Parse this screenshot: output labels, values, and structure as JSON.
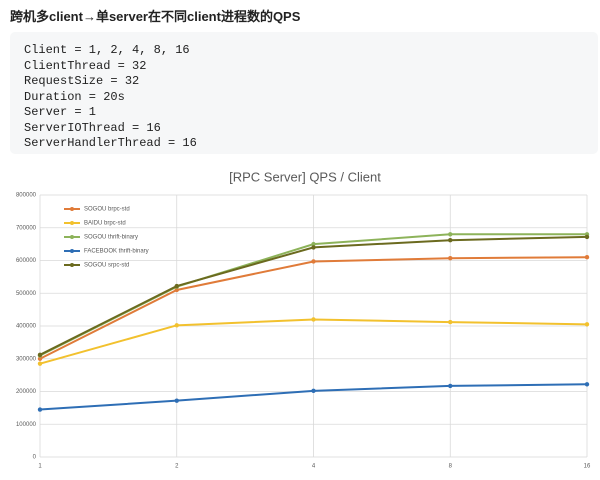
{
  "heading": "跨机多client→单server在不同client进程数的QPS",
  "code": [
    "Client = 1, 2, 4, 8, 16",
    "ClientThread = 32",
    "RequestSize = 32",
    "Duration = 20s",
    "Server = 1",
    "ServerIOThread = 16",
    "ServerHandlerThread = 16"
  ],
  "chart_data": {
    "type": "line",
    "title": "[RPC Server] QPS / Client",
    "categories": [
      "1",
      "2",
      "4",
      "8",
      "16"
    ],
    "series": [
      {
        "name": "SOGOU brpc-std",
        "color": "#e07b39",
        "values": [
          300000,
          510000,
          597000,
          607000,
          610000
        ]
      },
      {
        "name": "BAIDU brpc-std",
        "color": "#f2c12e",
        "values": [
          285000,
          402000,
          420000,
          412000,
          405000
        ]
      },
      {
        "name": "SOGOU thrift-binary",
        "color": "#8db35a",
        "values": [
          310000,
          520000,
          650000,
          680000,
          680000
        ]
      },
      {
        "name": "FACEBOOK thrift-binary",
        "color": "#2e6eb5",
        "values": [
          145000,
          172000,
          202000,
          217000,
          222000
        ]
      },
      {
        "name": "SOGOU srpc-std",
        "color": "#6b6a1f",
        "values": [
          312000,
          522000,
          640000,
          662000,
          672000
        ]
      }
    ],
    "ylim": [
      0,
      800000
    ],
    "yticks": [
      0,
      100000,
      200000,
      300000,
      400000,
      500000,
      600000,
      700000,
      800000
    ],
    "grid": true,
    "legend": "top-left"
  }
}
